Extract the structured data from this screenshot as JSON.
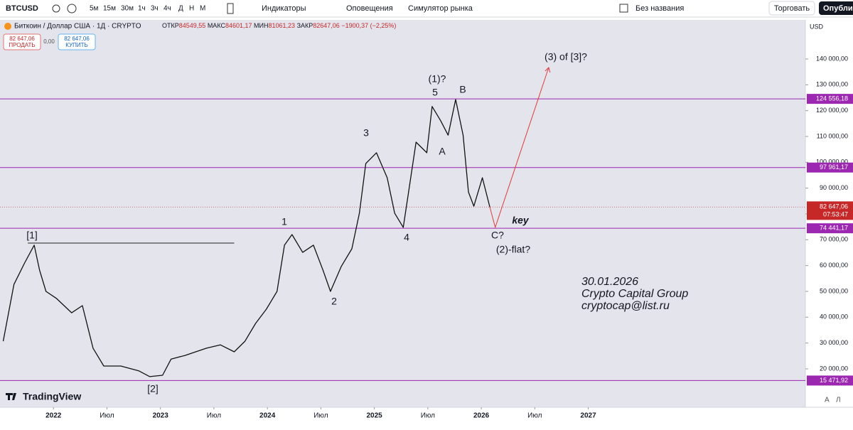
{
  "toolbar": {
    "symbol": "BTCUSD",
    "intervals": [
      "5м",
      "15м",
      "30м",
      "1ч",
      "3ч",
      "4ч",
      "Д",
      "Н",
      "М"
    ],
    "indicators": "Индикаторы",
    "alerts": "Оповещения",
    "replay": "Симулятор рынка",
    "layout_name": "Без названия",
    "trade": "Торговать",
    "publish": "Опублико"
  },
  "legend": {
    "title": "Биткоин / Доллар США · 1Д · CRYPTO",
    "ohlc": [
      {
        "label": "ОТКР",
        "value": "84549,55"
      },
      {
        "label": "МАКС",
        "value": "84601,17"
      },
      {
        "label": "МИН",
        "value": "81061,23"
      },
      {
        "label": "ЗАКР",
        "value": "82647,06"
      }
    ],
    "change": "−1900,37 (−2,25%)"
  },
  "trade_buttons": {
    "sell_price": "82 647,06",
    "sell": "ПРОДАТЬ",
    "spread": "0,00",
    "buy_price": "82 647,06",
    "buy": "КУПИТЬ"
  },
  "chart_data": {
    "type": "line",
    "x": [
      2021.53,
      2021.63,
      2021.73,
      2021.82,
      2021.87,
      2021.93,
      2022.03,
      2022.17,
      2022.27,
      2022.37,
      2022.47,
      2022.63,
      2022.8,
      2022.9,
      2023.02,
      2023.1,
      2023.23,
      2023.43,
      2023.56,
      2023.69,
      2023.79,
      2023.89,
      2023.99,
      2024.09,
      2024.16,
      2024.23,
      2024.33,
      2024.43,
      2024.52,
      2024.59,
      2024.69,
      2024.79,
      2024.86,
      2024.92,
      2025.02,
      2025.12,
      2025.19,
      2025.27,
      2025.32,
      2025.39,
      2025.49,
      2025.54,
      2025.62,
      2025.69,
      2025.76,
      2025.83,
      2025.88,
      2025.93,
      2026.01,
      2026.08
    ],
    "series": [
      {
        "color": "#111111",
        "values": [
          30700,
          52700,
          61000,
          67900,
          58200,
          50000,
          47200,
          41700,
          44500,
          28000,
          21100,
          21100,
          19200,
          17000,
          17500,
          23800,
          25200,
          28000,
          29300,
          26600,
          30700,
          37600,
          43100,
          50000,
          67900,
          72000,
          65100,
          67900,
          58200,
          50000,
          59600,
          66500,
          80300,
          99500,
          103700,
          94000,
          80300,
          74800,
          88500,
          107800,
          103700,
          121600,
          116100,
          110500,
          124300,
          110500,
          88500,
          83000,
          94000,
          82647.06
        ]
      }
    ],
    "xlim": [
      2021.5,
      2029.03
    ],
    "xticks": [
      2022,
      {
        "value": 2022.5,
        "label": "Июл"
      },
      2023,
      {
        "value": 2023.5,
        "label": "Июл"
      },
      2024,
      {
        "value": 2024.5,
        "label": "Июл"
      },
      2025,
      {
        "value": 2025.5,
        "label": "Июл"
      },
      2026,
      {
        "value": 2026.5,
        "label": "Июл"
      },
      2027
    ],
    "ylim": [
      5125,
      155140
    ],
    "yticks": [
      {
        "value": 20000,
        "label": "20 000,00"
      },
      {
        "value": 30000,
        "label": "30 000,00"
      },
      {
        "value": 40000,
        "label": "40 000,00"
      },
      {
        "value": 50000,
        "label": "50 000,00"
      },
      {
        "value": 60000,
        "label": "60 000,00"
      },
      {
        "value": 70000,
        "label": "70 000,00"
      },
      {
        "value": 80000,
        "label": "80 000,00"
      },
      {
        "value": 90000,
        "label": "90 000,00"
      },
      {
        "value": 100000,
        "label": "100 000,00"
      },
      {
        "value": 110000,
        "label": "110 000,00"
      },
      {
        "value": 120000,
        "label": "120 000,00"
      },
      {
        "value": 130000,
        "label": "130 000,00"
      },
      {
        "value": 140000,
        "label": "140 000,00"
      }
    ],
    "currency": "USD",
    "levels": [
      {
        "value": 124556.18,
        "label": "124 556,18"
      },
      {
        "value": 97961.17,
        "label": "97 961,17"
      },
      {
        "value": 74441.17,
        "label": "74 441,17"
      },
      {
        "value": 15471.92,
        "label": "15 471,92"
      }
    ],
    "level_color": "#9c27b0",
    "last_price": {
      "value": 82647.06,
      "label": "82 647,06",
      "countdown": "07:53:47",
      "color": "#c62828"
    },
    "resistance": {
      "value": 68700,
      "x": [
        2021.76,
        2023.69
      ]
    },
    "projection": {
      "color": "#e53935",
      "x": [
        2026.08,
        2026.13,
        2026.63
      ],
      "values": [
        82647.06,
        74800,
        136700
      ]
    },
    "annotations": [
      "[1]",
      "1",
      "2",
      "3",
      "4",
      "5",
      "(1)?",
      "A",
      "B",
      "C?",
      "(2)-flat?",
      "key",
      "(3) of [3]?",
      "[2]"
    ],
    "signature": [
      "30.01.2026",
      "Crypto Capital Group",
      "cryptocap@list.ru"
    ],
    "watermark": "TradingView",
    "scale_buttons": [
      "A",
      "Л"
    ]
  }
}
